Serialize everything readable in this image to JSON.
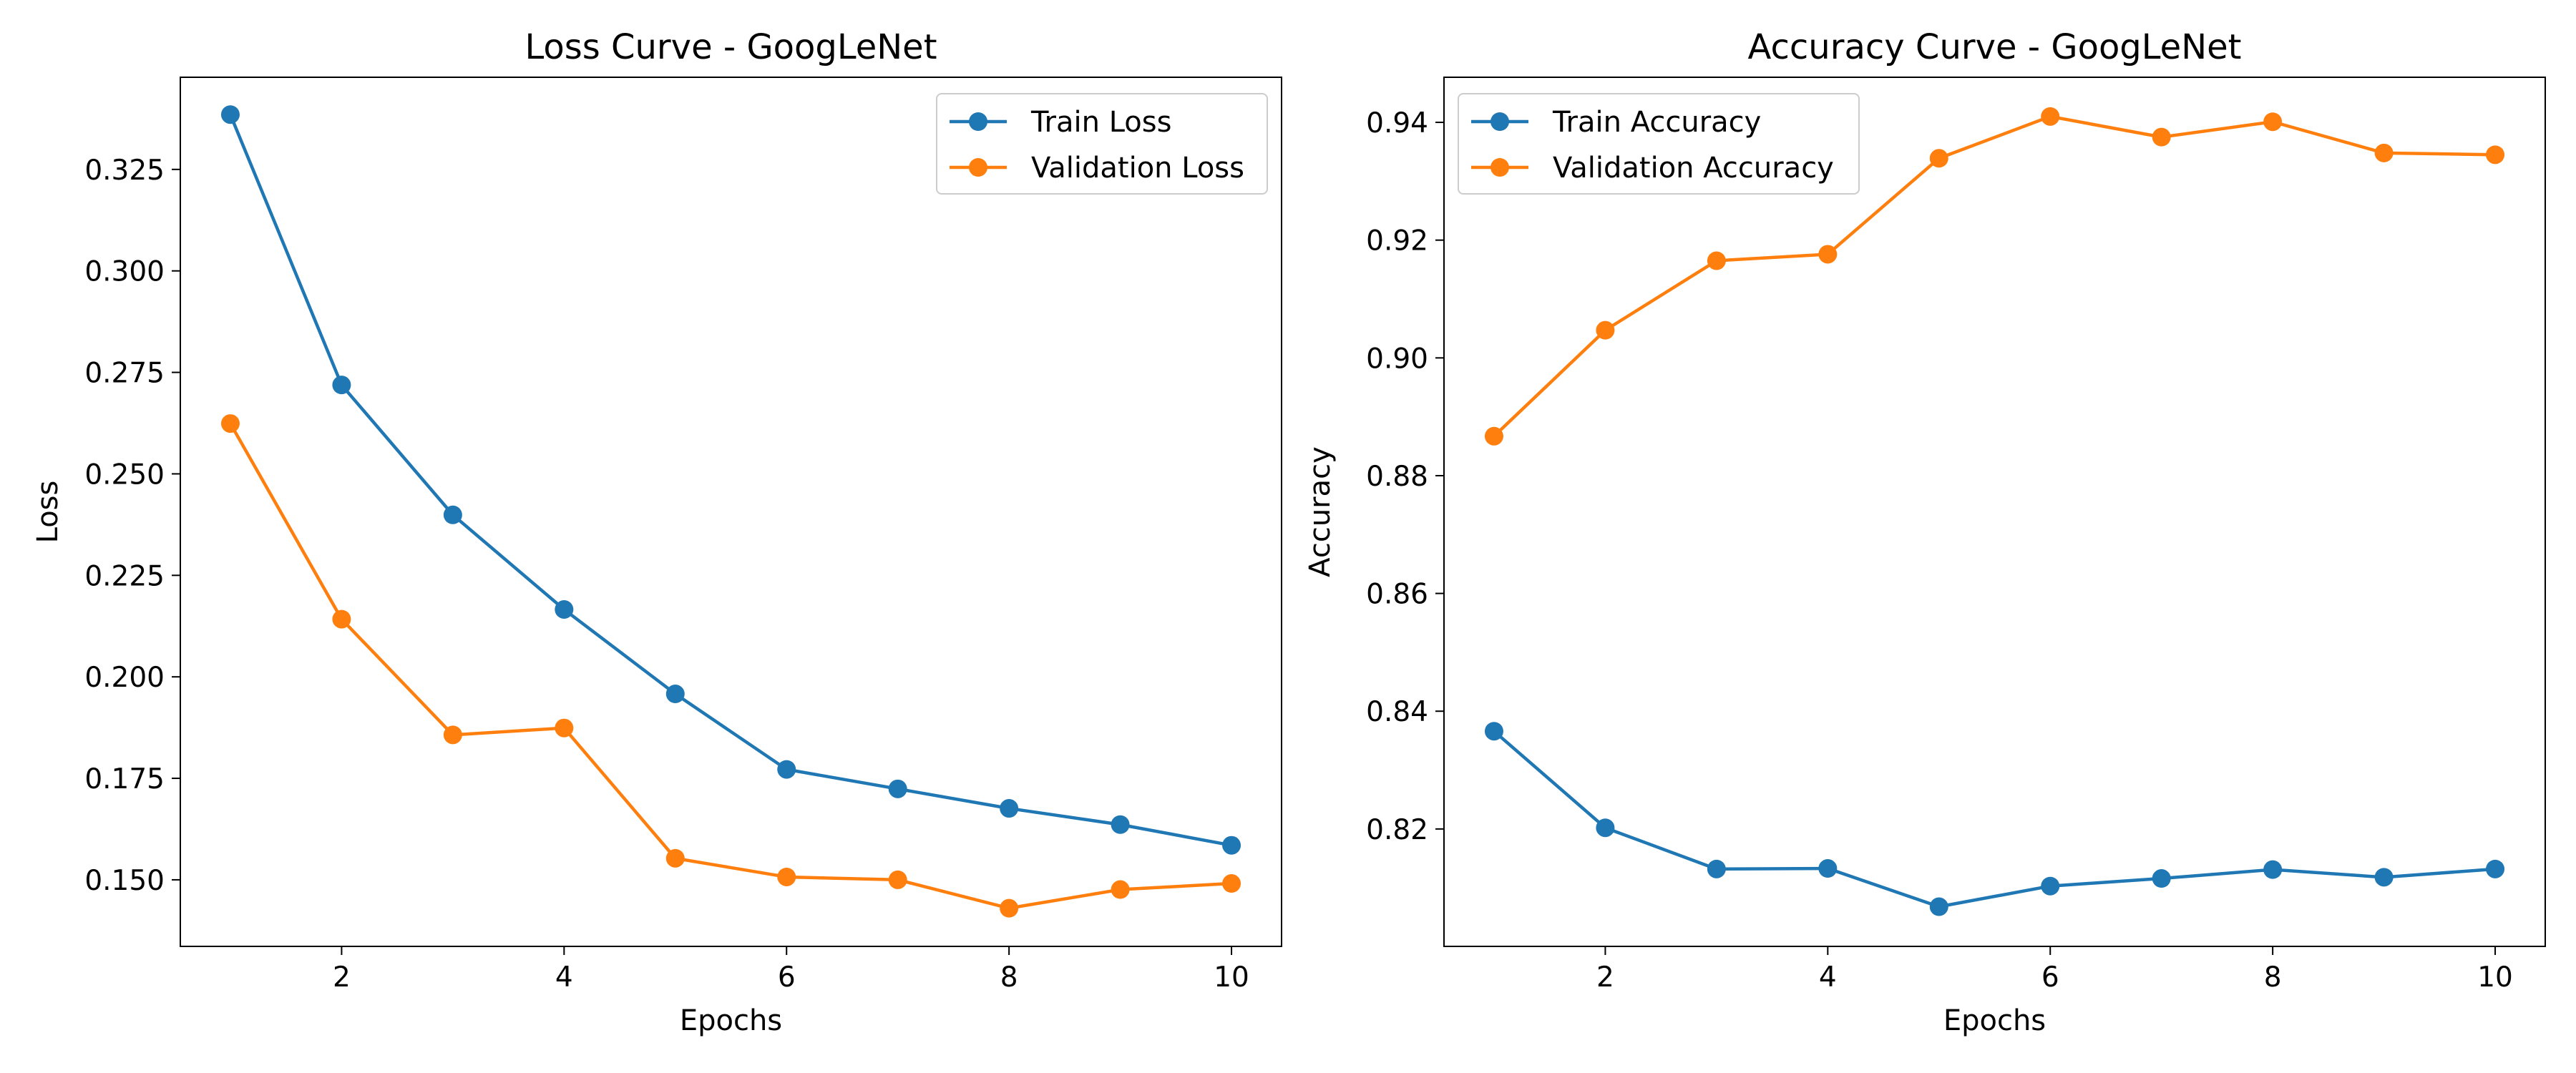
{
  "chart_data": [
    {
      "type": "line",
      "title": "Loss Curve - GoogLeNet",
      "xlabel": "Epochs",
      "ylabel": "Loss",
      "x": [
        1,
        2,
        3,
        4,
        5,
        6,
        7,
        8,
        9,
        10
      ],
      "xlim": [
        0.55,
        10.45
      ],
      "ylim": [
        0.1336,
        0.3477
      ],
      "xticks": [
        2,
        4,
        6,
        8,
        10
      ],
      "xtick_labels": [
        "2",
        "4",
        "6",
        "8",
        "10"
      ],
      "yticks": [
        0.15,
        0.175,
        0.2,
        0.225,
        0.25,
        0.275,
        0.3,
        0.325
      ],
      "ytick_labels": [
        "0.150",
        "0.175",
        "0.200",
        "0.225",
        "0.250",
        "0.275",
        "0.300",
        "0.325"
      ],
      "grid": false,
      "legend_position": "upper right",
      "series": [
        {
          "name": "Train Loss",
          "color": "#1f77b4",
          "values": [
            0.3385,
            0.2719,
            0.2399,
            0.2166,
            0.1958,
            0.1772,
            0.1724,
            0.1676,
            0.1636,
            0.1585
          ]
        },
        {
          "name": "Validation Loss",
          "color": "#ff7f0e",
          "values": [
            0.2624,
            0.2142,
            0.1857,
            0.1874,
            0.1553,
            0.1507,
            0.15,
            0.143,
            0.1476,
            0.1491
          ]
        }
      ]
    },
    {
      "type": "line",
      "title": "Accuracy Curve - GoogLeNet",
      "xlabel": "Epochs",
      "ylabel": "Accuracy",
      "x": [
        1,
        2,
        3,
        4,
        5,
        6,
        7,
        8,
        9,
        10
      ],
      "xlim": [
        0.55,
        10.45
      ],
      "ylim": [
        0.80006,
        0.94766
      ],
      "xticks": [
        2,
        4,
        6,
        8,
        10
      ],
      "xtick_labels": [
        "2",
        "4",
        "6",
        "8",
        "10"
      ],
      "yticks": [
        0.82,
        0.84,
        0.86,
        0.88,
        0.9,
        0.92,
        0.94
      ],
      "ytick_labels": [
        "0.82",
        "0.84",
        "0.86",
        "0.88",
        "0.90",
        "0.92",
        "0.94"
      ],
      "grid": false,
      "legend_position": "upper left",
      "series": [
        {
          "name": "Train Accuracy",
          "color": "#1f77b4",
          "values": [
            0.8366,
            0.8202,
            0.8132,
            0.8133,
            0.8068,
            0.8103,
            0.8116,
            0.8131,
            0.8118,
            0.8132
          ]
        },
        {
          "name": "Validation Accuracy",
          "color": "#ff7f0e",
          "values": [
            0.8867,
            0.9047,
            0.9165,
            0.9176,
            0.9339,
            0.941,
            0.9375,
            0.9401,
            0.9348,
            0.9345
          ]
        }
      ]
    }
  ]
}
